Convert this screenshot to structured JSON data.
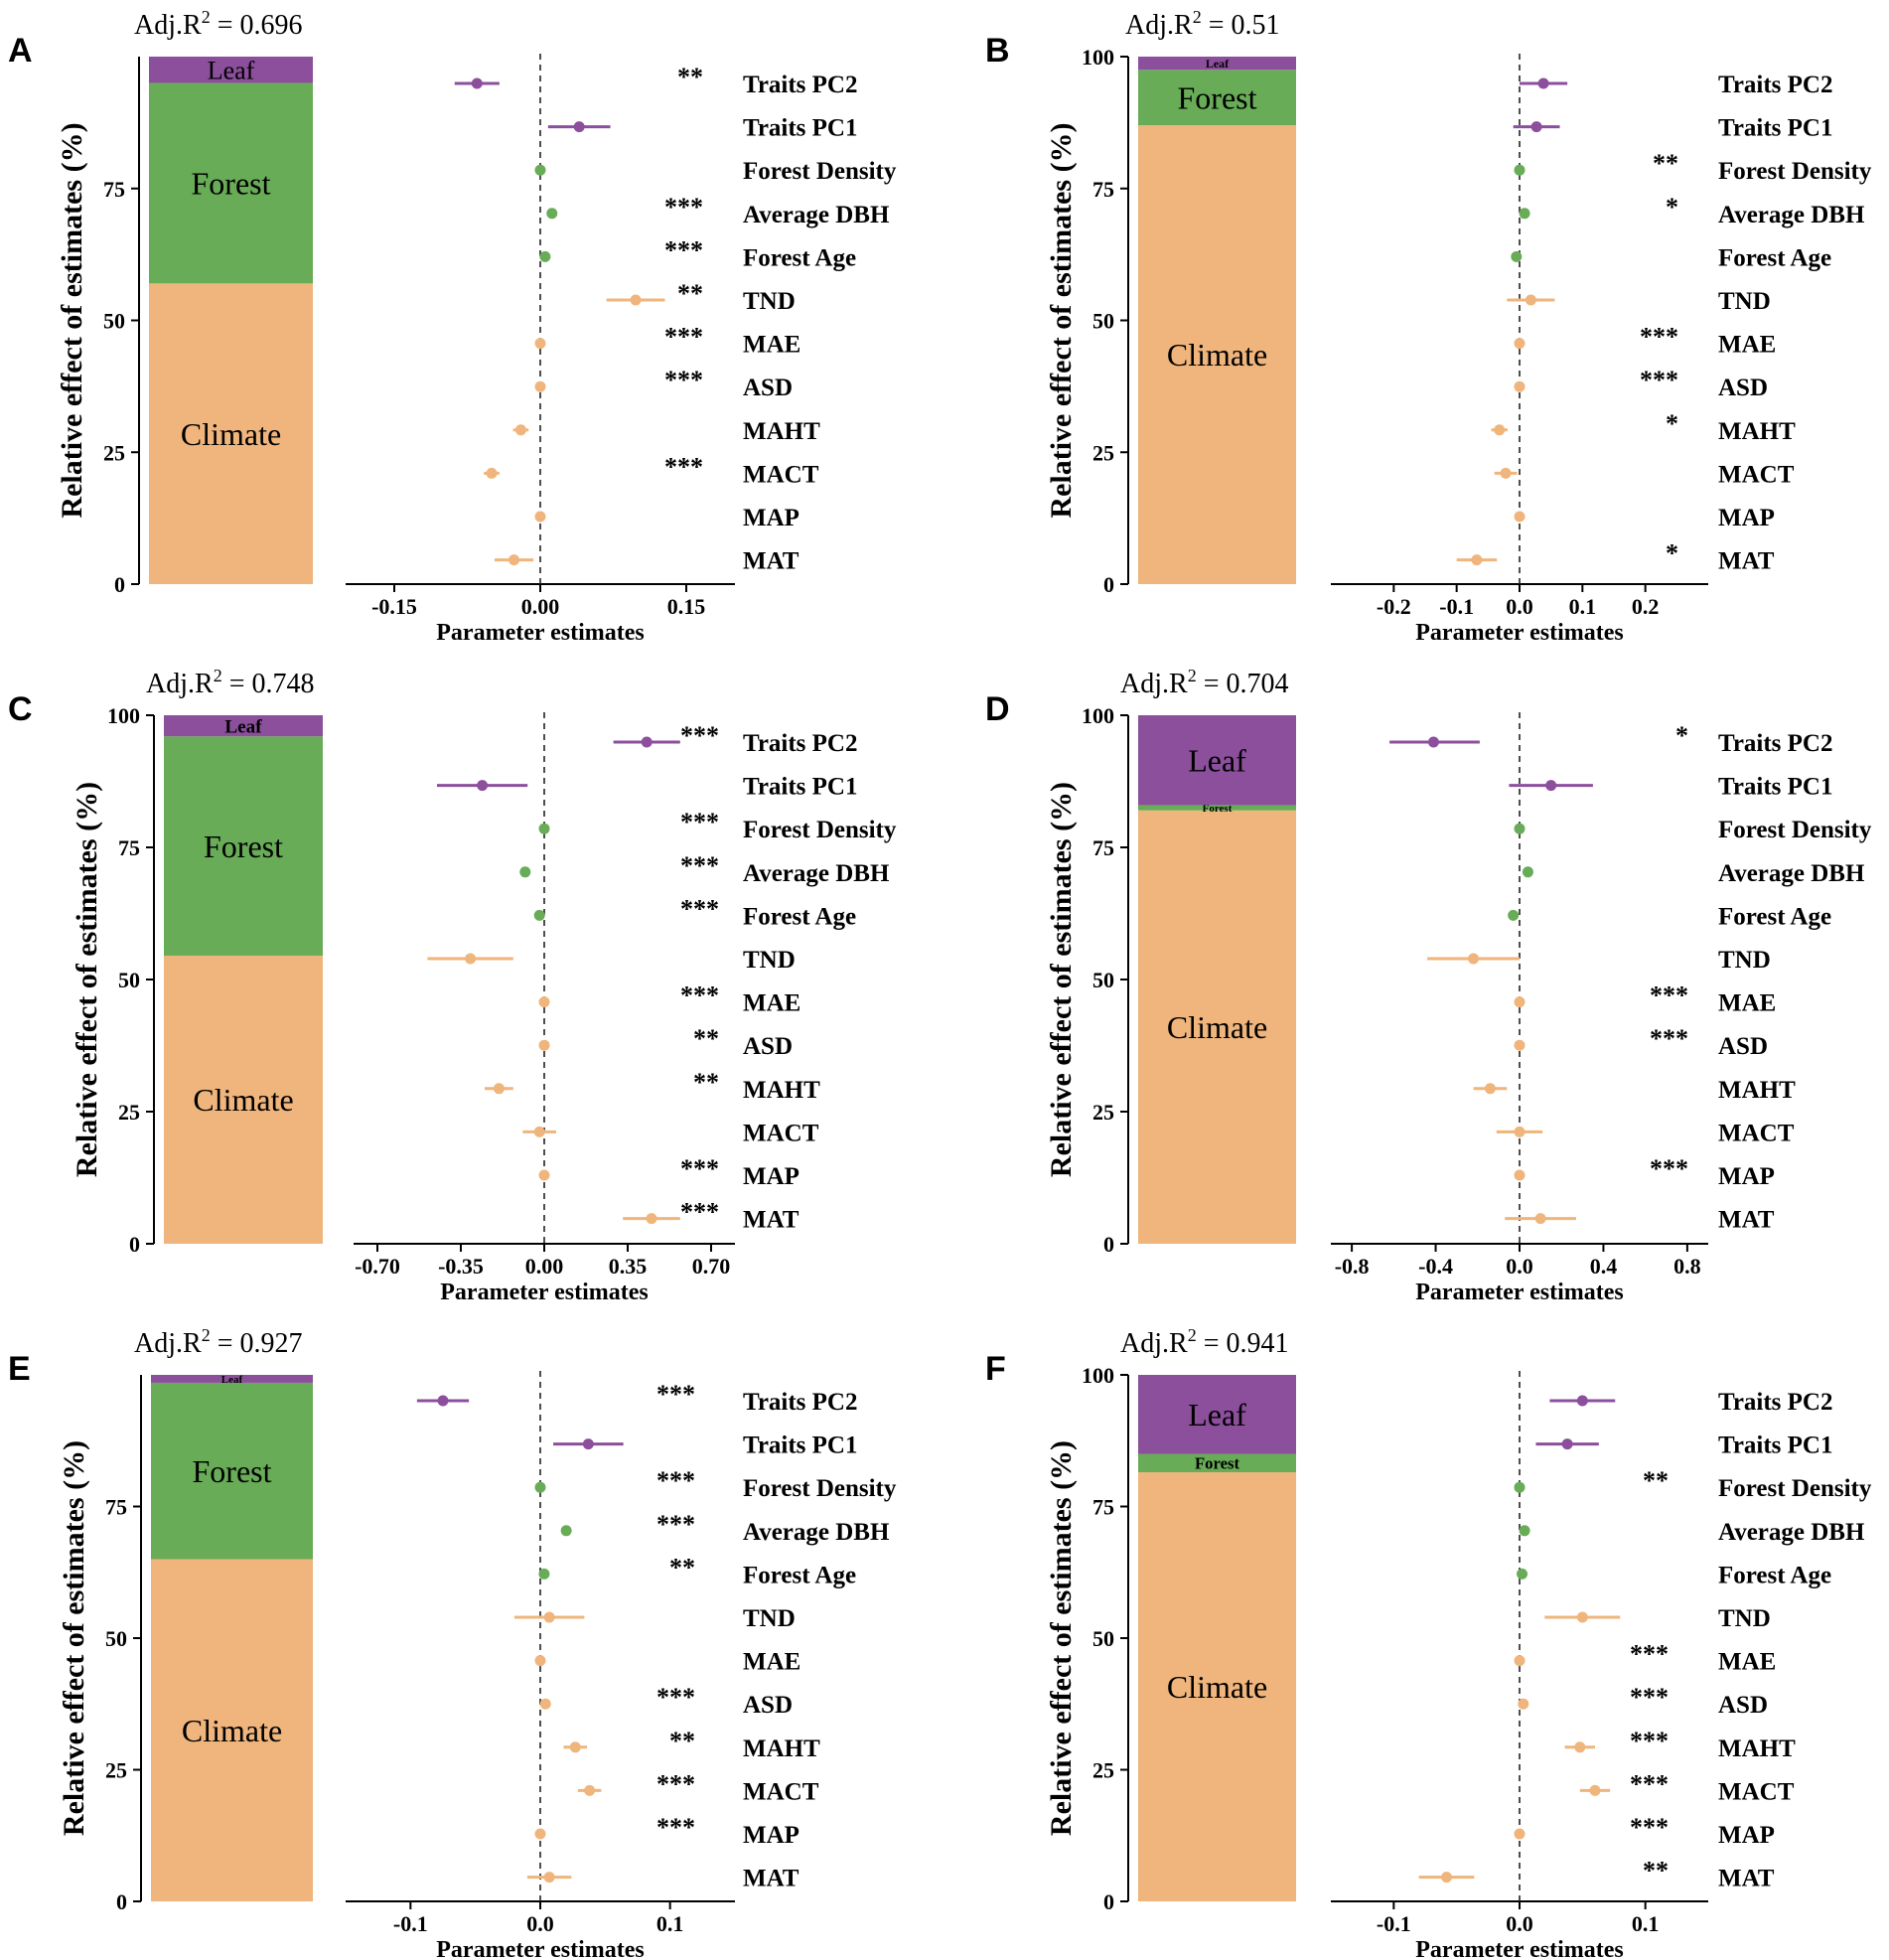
{
  "colors": {
    "leaf": "#8b4f9c",
    "forest": "#68ac57",
    "climate": "#efb57c",
    "axis": "#000000"
  },
  "ylabel": "Relative effect of estimates (%)",
  "xlabel": "Parameter estimates",
  "variables": [
    "Traits PC2",
    "Traits PC1",
    "Forest Density",
    "Average DBH",
    "Forest Age",
    "TND",
    "MAE",
    "ASD",
    "MAHT",
    "MACT",
    "MAP",
    "MAT"
  ],
  "groups": [
    "leaf",
    "leaf",
    "forest",
    "forest",
    "forest",
    "climate",
    "climate",
    "climate",
    "climate",
    "climate",
    "climate",
    "climate"
  ],
  "chart_data": [
    {
      "type": "scatter",
      "panel": "A",
      "adj_r2_prefix": "Adj.R",
      "adj_r2_sup": "2",
      "adj_r2_value": "= 0.696",
      "stack": {
        "climate": 57,
        "forest": 38,
        "leaf": 5
      },
      "stack_labels": {
        "leaf": "Leaf",
        "forest": "Forest",
        "climate": "Climate"
      },
      "stack_ticks": [
        0,
        25,
        50,
        75
      ],
      "stack_max": 100,
      "xlim": [
        -0.2,
        0.2
      ],
      "xticks": [
        -0.15,
        0.0,
        0.15
      ],
      "xtick_labels": [
        "-0.15",
        "0.00",
        "0.15"
      ],
      "estimates": [
        -0.065,
        0.04,
        0.0,
        0.012,
        0.005,
        0.098,
        0.0,
        0.0,
        -0.02,
        -0.05,
        0.0,
        -0.027
      ],
      "ci_low": [
        -0.088,
        0.008,
        0.0,
        0.012,
        0.005,
        0.068,
        0.0,
        0.0,
        -0.028,
        -0.058,
        0.0,
        -0.047
      ],
      "ci_high": [
        -0.042,
        0.072,
        0.0,
        0.012,
        0.005,
        0.128,
        0.0,
        0.0,
        -0.012,
        -0.042,
        0.0,
        -0.007
      ],
      "stars": [
        "**",
        "",
        "",
        "***",
        "***",
        "**",
        "***",
        "***",
        "",
        "***",
        "",
        ""
      ]
    },
    {
      "type": "scatter",
      "panel": "B",
      "adj_r2_prefix": "Adj.R",
      "adj_r2_sup": "2",
      "adj_r2_value": "= 0.51",
      "stack": {
        "climate": 87,
        "forest": 10.5,
        "leaf": 2.5
      },
      "stack_labels": {
        "leaf": "Leaf",
        "forest": "Forest",
        "climate": "Climate"
      },
      "stack_ticks": [
        0,
        25,
        50,
        75,
        100
      ],
      "stack_max": 100,
      "xlim": [
        -0.3,
        0.3
      ],
      "xticks": [
        -0.2,
        -0.1,
        0.0,
        0.1,
        0.2
      ],
      "xtick_labels": [
        "-0.2",
        "-0.1",
        "0.0",
        "0.1",
        "0.2"
      ],
      "estimates": [
        0.038,
        0.027,
        0.0,
        0.008,
        -0.005,
        0.018,
        0.0,
        0.0,
        -0.032,
        -0.022,
        0.0,
        -0.068
      ],
      "ci_low": [
        0.0,
        -0.01,
        0.0,
        0.008,
        -0.005,
        -0.02,
        0.0,
        0.0,
        -0.045,
        -0.04,
        0.0,
        -0.1
      ],
      "ci_high": [
        0.076,
        0.064,
        0.0,
        0.008,
        -0.005,
        0.056,
        0.0,
        0.0,
        -0.019,
        -0.004,
        0.0,
        -0.036
      ],
      "stars": [
        "",
        "",
        "**",
        "*",
        "",
        "",
        "***",
        "***",
        "*",
        "",
        "",
        "*"
      ]
    },
    {
      "type": "scatter",
      "panel": "C",
      "adj_r2_prefix": "Adj.R",
      "adj_r2_sup": "2",
      "adj_r2_value": "= 0.748",
      "stack": {
        "climate": 54.5,
        "forest": 41.5,
        "leaf": 4
      },
      "stack_labels": {
        "leaf": "Leaf",
        "forest": "Forest",
        "climate": "Climate"
      },
      "stack_ticks": [
        0,
        25,
        50,
        75,
        100
      ],
      "stack_max": 100,
      "xlim": [
        -0.8,
        0.8
      ],
      "xticks": [
        -0.7,
        -0.35,
        0.0,
        0.35,
        0.7
      ],
      "xtick_labels": [
        "-0.70",
        "-0.35",
        "0.00",
        "0.35",
        "0.70"
      ],
      "estimates": [
        0.43,
        -0.26,
        0.0,
        -0.08,
        -0.02,
        -0.31,
        0.0,
        0.0,
        -0.19,
        -0.02,
        0.0,
        0.45
      ],
      "ci_low": [
        0.29,
        -0.45,
        0.0,
        -0.08,
        -0.02,
        -0.49,
        0.0,
        0.0,
        -0.25,
        -0.09,
        0.0,
        0.33
      ],
      "ci_high": [
        0.57,
        -0.07,
        0.0,
        -0.08,
        -0.02,
        -0.13,
        0.0,
        0.0,
        -0.13,
        0.05,
        0.0,
        0.57
      ],
      "stars": [
        "***",
        "",
        "***",
        "***",
        "***",
        "",
        "***",
        "**",
        "**",
        "",
        "***",
        "***"
      ]
    },
    {
      "type": "scatter",
      "panel": "D",
      "adj_r2_prefix": "Adj.R",
      "adj_r2_sup": "2",
      "adj_r2_value": "= 0.704",
      "stack": {
        "climate": 82,
        "forest": 1,
        "leaf": 17
      },
      "stack_labels": {
        "leaf": "Leaf",
        "forest": "Forest",
        "climate": "Climate"
      },
      "stack_ticks": [
        0,
        25,
        50,
        75,
        100
      ],
      "stack_max": 100,
      "xlim": [
        -0.9,
        0.9
      ],
      "xticks": [
        -0.8,
        -0.4,
        0.0,
        0.4,
        0.8
      ],
      "xtick_labels": [
        "-0.8",
        "-0.4",
        "0.0",
        "0.4",
        "0.8"
      ],
      "estimates": [
        -0.41,
        0.15,
        0.0,
        0.04,
        -0.03,
        -0.22,
        0.0,
        0.0,
        -0.14,
        0.0,
        0.0,
        0.1
      ],
      "ci_low": [
        -0.62,
        -0.05,
        0.0,
        0.04,
        -0.03,
        -0.44,
        0.0,
        0.0,
        -0.22,
        -0.11,
        0.0,
        -0.07
      ],
      "ci_high": [
        -0.19,
        0.35,
        0.0,
        0.04,
        -0.03,
        0.0,
        0.0,
        0.0,
        -0.06,
        0.11,
        0.0,
        0.27
      ],
      "stars": [
        "*",
        "",
        "",
        "",
        "",
        "",
        "***",
        "***",
        "",
        "",
        "***",
        ""
      ]
    },
    {
      "type": "scatter",
      "panel": "E",
      "adj_r2_prefix": "Adj.R",
      "adj_r2_sup": "2",
      "adj_r2_value": "= 0.927",
      "stack": {
        "climate": 65,
        "forest": 33.5,
        "leaf": 1.5
      },
      "stack_labels": {
        "leaf": "Leaf",
        "forest": "Forest",
        "climate": "Climate"
      },
      "stack_ticks": [
        0,
        25,
        50,
        75
      ],
      "stack_max": 100,
      "xlim": [
        -0.15,
        0.15
      ],
      "xticks": [
        -0.1,
        0.0,
        0.1
      ],
      "xtick_labels": [
        "-0.1",
        "0.0",
        "0.1"
      ],
      "estimates": [
        -0.075,
        0.037,
        0.0,
        0.02,
        0.003,
        0.007,
        0.0,
        0.004,
        0.027,
        0.038,
        0.0,
        0.007
      ],
      "ci_low": [
        -0.095,
        0.01,
        0.0,
        0.02,
        0.003,
        -0.02,
        0.0,
        0.004,
        0.018,
        0.029,
        0.0,
        -0.01
      ],
      "ci_high": [
        -0.055,
        0.064,
        0.0,
        0.02,
        0.003,
        0.034,
        0.0,
        0.004,
        0.036,
        0.047,
        0.0,
        0.024
      ],
      "stars": [
        "***",
        "",
        "***",
        "***",
        "**",
        "",
        "",
        "***",
        "**",
        "***",
        "***",
        ""
      ]
    },
    {
      "type": "scatter",
      "panel": "F",
      "adj_r2_prefix": "Adj.R",
      "adj_r2_sup": "2",
      "adj_r2_value": "= 0.941",
      "stack": {
        "climate": 81.5,
        "forest": 3.5,
        "leaf": 15
      },
      "stack_labels": {
        "leaf": "Leaf",
        "forest": "Forest",
        "climate": "Climate"
      },
      "stack_ticks": [
        0,
        25,
        50,
        75,
        100
      ],
      "stack_max": 100,
      "xlim": [
        -0.15,
        0.15
      ],
      "xticks": [
        -0.1,
        0.0,
        0.1
      ],
      "xtick_labels": [
        "-0.1",
        "0.0",
        "0.1"
      ],
      "estimates": [
        0.05,
        0.038,
        0.0,
        0.004,
        0.002,
        0.05,
        0.0,
        0.003,
        0.048,
        0.06,
        0.0,
        -0.058
      ],
      "ci_low": [
        0.024,
        0.013,
        0.0,
        0.004,
        0.002,
        0.02,
        0.0,
        0.003,
        0.036,
        0.048,
        0.0,
        -0.08
      ],
      "ci_high": [
        0.076,
        0.063,
        0.0,
        0.004,
        0.002,
        0.08,
        0.0,
        0.003,
        0.06,
        0.072,
        0.0,
        -0.036
      ],
      "stars": [
        "",
        "",
        "**",
        "",
        "",
        "",
        "***",
        "***",
        "***",
        "***",
        "***",
        "**"
      ]
    }
  ]
}
